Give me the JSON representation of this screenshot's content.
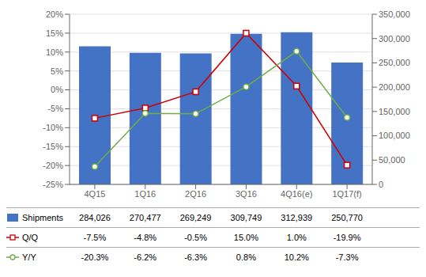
{
  "chart_data": {
    "type": "bar",
    "categories": [
      "4Q15",
      "1Q16",
      "2Q16",
      "3Q16",
      "4Q16(e)",
      "1Q17(f)"
    ],
    "series": [
      {
        "name": "Shipments",
        "type": "bar",
        "axis": "y2",
        "color": "#4472C4",
        "values": [
          284026,
          270477,
          269249,
          309749,
          312939,
          250770
        ],
        "value_labels": [
          "284,026",
          "270,477",
          "269,249",
          "309,749",
          "312,939",
          "250,770"
        ]
      },
      {
        "name": "Q/Q",
        "type": "line",
        "color": "#CC0000",
        "marker": "square",
        "values": [
          -7.5,
          -4.8,
          -0.5,
          15.0,
          1.0,
          -19.9
        ],
        "value_labels": [
          "-7.5%",
          "-4.8%",
          "-0.5%",
          "15.0%",
          "1.0%",
          "-19.9%"
        ]
      },
      {
        "name": "Y/Y",
        "type": "line",
        "color": "#70AD47",
        "marker": "circle",
        "values": [
          -20.3,
          -6.2,
          -6.3,
          0.8,
          10.2,
          -7.3
        ],
        "value_labels": [
          "-20.3%",
          "-6.2%",
          "-6.3%",
          "0.8%",
          "10.2%",
          "-7.3%"
        ]
      }
    ],
    "ylim": [
      -25,
      20
    ],
    "yticks": [
      {
        "value": -25,
        "label": "-25%"
      },
      {
        "value": -20,
        "label": "-20%"
      },
      {
        "value": -15,
        "label": "-15%"
      },
      {
        "value": -10,
        "label": "-10%"
      },
      {
        "value": -5,
        "label": "-5%"
      },
      {
        "value": 0,
        "label": "0%"
      },
      {
        "value": 5,
        "label": "5%"
      },
      {
        "value": 10,
        "label": "10%"
      },
      {
        "value": 15,
        "label": "15%"
      },
      {
        "value": 20,
        "label": "20%"
      }
    ],
    "y2lim": [
      0,
      350000
    ],
    "y2ticks": [
      0,
      {
        "value": 50000,
        "label": "50,000"
      },
      {
        "value": 100000,
        "label": "100,000"
      },
      {
        "value": 150000,
        "label": "150,000"
      },
      {
        "value": 200000,
        "label": "200,000"
      },
      {
        "value": 250000,
        "label": "250,000"
      },
      {
        "value": 300000,
        "label": "300,000"
      },
      {
        "value": 350000,
        "label": "350,000"
      }
    ],
    "grid": true,
    "legend": "bottom"
  }
}
